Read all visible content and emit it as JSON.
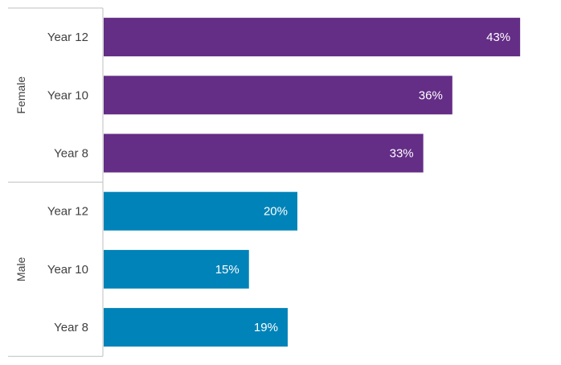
{
  "chart_data": {
    "type": "bar",
    "orientation": "horizontal",
    "title": "",
    "xlabel": "",
    "ylabel": "",
    "xlim": [
      0,
      50
    ],
    "grid": false,
    "legend": "none",
    "value_format": "percent",
    "groups": [
      {
        "name": "Female",
        "color": "#642d86",
        "categories": [
          "Year 12",
          "Year 10",
          "Year 8"
        ],
        "values": [
          43,
          36,
          33
        ],
        "labels": [
          "43%",
          "36%",
          "33%"
        ]
      },
      {
        "name": "Male",
        "color": "#0083b8",
        "categories": [
          "Year 12",
          "Year 10",
          "Year 8"
        ],
        "values": [
          20,
          15,
          19
        ],
        "labels": [
          "20%",
          "15%",
          "19%"
        ]
      }
    ]
  }
}
